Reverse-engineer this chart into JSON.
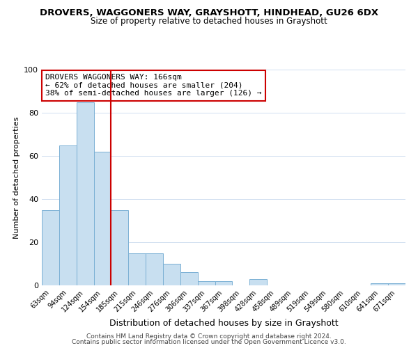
{
  "title": "DROVERS, WAGGONERS WAY, GRAYSHOTT, HINDHEAD, GU26 6DX",
  "subtitle": "Size of property relative to detached houses in Grayshott",
  "xlabel": "Distribution of detached houses by size in Grayshott",
  "ylabel": "Number of detached properties",
  "bar_labels": [
    "63sqm",
    "94sqm",
    "124sqm",
    "154sqm",
    "185sqm",
    "215sqm",
    "246sqm",
    "276sqm",
    "306sqm",
    "337sqm",
    "367sqm",
    "398sqm",
    "428sqm",
    "458sqm",
    "489sqm",
    "519sqm",
    "549sqm",
    "580sqm",
    "610sqm",
    "641sqm",
    "671sqm"
  ],
  "bar_heights": [
    35,
    65,
    85,
    62,
    35,
    15,
    15,
    10,
    6,
    2,
    2,
    0,
    3,
    0,
    0,
    0,
    0,
    0,
    0,
    1,
    1
  ],
  "bar_color": "#c8dff0",
  "bar_edge_color": "#7ab0d4",
  "vline_color": "#cc0000",
  "vline_x_index": 3,
  "annotation_text": "DROVERS WAGGONERS WAY: 166sqm\n← 62% of detached houses are smaller (204)\n38% of semi-detached houses are larger (126) →",
  "annotation_box_color": "#ffffff",
  "annotation_box_edge": "#cc0000",
  "ylim": [
    0,
    100
  ],
  "yticks": [
    0,
    20,
    40,
    60,
    80,
    100
  ],
  "footer1": "Contains HM Land Registry data © Crown copyright and database right 2024.",
  "footer2": "Contains public sector information licensed under the Open Government Licence v3.0.",
  "background_color": "#ffffff",
  "grid_color": "#d0dff0"
}
